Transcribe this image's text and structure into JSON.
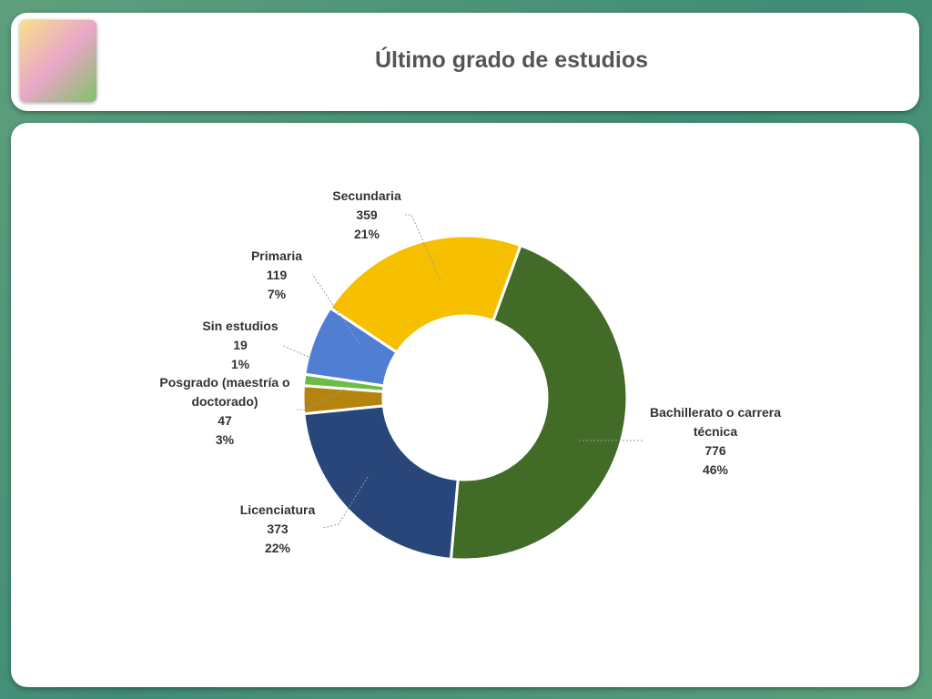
{
  "chart_data": {
    "type": "donut",
    "title": "Último grado de estudios",
    "categories": [
      "Bachillerato o carrera técnica",
      "Licenciatura",
      "Posgrado (maestría o doctorado)",
      "Sin estudios",
      "Primaria",
      "Secundaria"
    ],
    "values": [
      776,
      373,
      47,
      19,
      119,
      359
    ],
    "percentages": [
      46,
      22,
      3,
      1,
      7,
      21
    ],
    "percentage_labels": [
      "46%",
      "22%",
      "3%",
      "1%",
      "7%",
      "21%"
    ],
    "colors": [
      "#416b27",
      "#284679",
      "#b5840e",
      "#6cbd48",
      "#4f7ed3",
      "#f6c000"
    ]
  }
}
